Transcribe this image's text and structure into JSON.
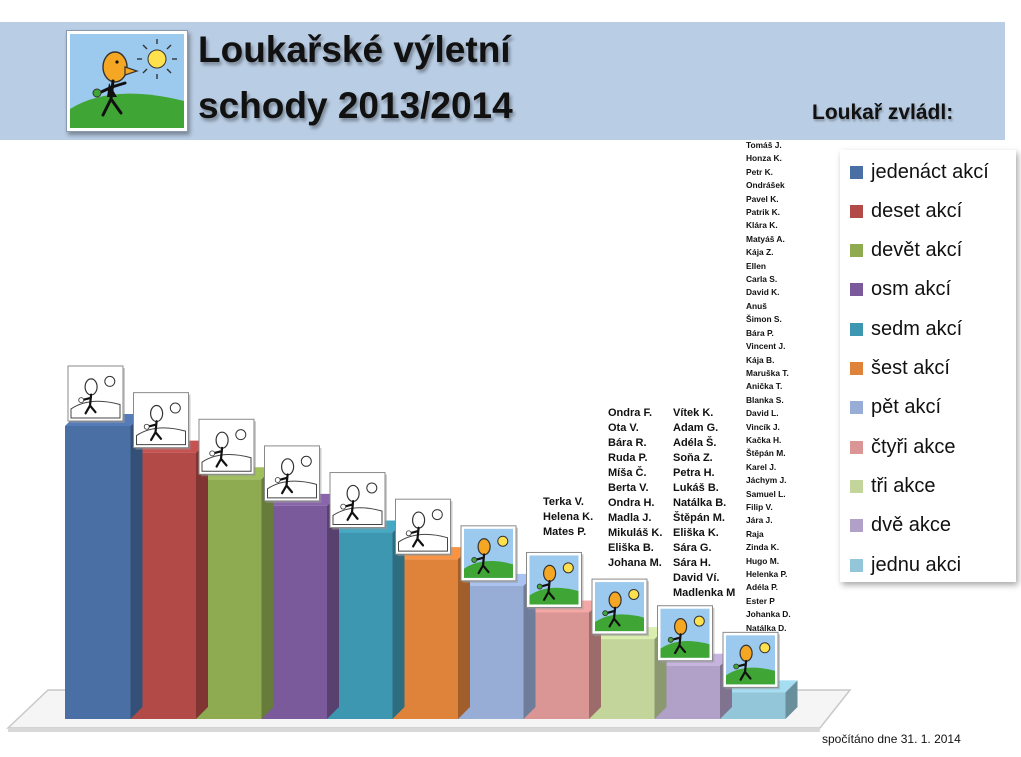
{
  "title_line1": "Loukařské výletní",
  "title_line2": "schody 2013/2014",
  "legend_heading": "Loukař zvládl:",
  "footnote": "spočítáno dne 31. 1. 2014",
  "logo_icon": "hiker-on-hill-icon",
  "chart_data": {
    "type": "bar",
    "categories": [
      "jedenáct akcí",
      "deset akcí",
      "devět akcí",
      "osm akcí",
      "sedm akcí",
      "šest akcí",
      "pět akcí",
      "čtyři akce",
      "tři akce",
      "dvě akce",
      "jednu akci"
    ],
    "values": [
      11,
      10,
      9,
      8,
      7,
      6,
      5,
      4,
      3,
      2,
      1
    ],
    "colors": [
      "#4a6fa5",
      "#b24a47",
      "#8fab52",
      "#7a5a9a",
      "#3e97b0",
      "#e0833a",
      "#97add6",
      "#d99694",
      "#c3d59b",
      "#b1a0c7",
      "#93c6d8"
    ],
    "legend_position": "right",
    "grid": false,
    "names": {
      "čtyři akce": [
        "Terka V.",
        "Helena K.",
        "Mates P."
      ],
      "tři akce": [
        "Ondra F.",
        "Ota V.",
        "Bára R.",
        "Ruda P.",
        "Míša Č.",
        "Berta V.",
        "Ondra H.",
        "Madla J.",
        "Mikuláš K.",
        "Eliška B.",
        "Johana M."
      ],
      "dvě akce": [
        "Vítek K.",
        "Adam G.",
        "Adéla Š.",
        "Soňa Z.",
        "Petra H.",
        "Lukáš B.",
        "Natálka B.",
        "Štěpán M.",
        "Eliška K.",
        "Sára G.",
        "Sára H.",
        "David Ví.",
        "Madlenka M"
      ],
      "jednu akci": [
        "Tomáš J.",
        "Honza K.",
        "Petr K.",
        "Ondrášek",
        "Pavel K.",
        "Patrik K.",
        "Klára K.",
        "Matyáš A.",
        "Kája Z.",
        "Ellen",
        "Carla S.",
        "David K.",
        "Anuš",
        "Šimon S.",
        "Bára P.",
        "Vincent J.",
        "Kája B.",
        "Maruška T.",
        "Anička T.",
        "Blanka S.",
        "David L.",
        "Vincík J.",
        "Kačka H.",
        "Štěpán M.",
        "Karel J.",
        "Jáchym J.",
        "Samuel L.",
        "Filip V.",
        "Jára J.",
        "Raja",
        "Zinda K.",
        "Hugo M.",
        "Helenka P.",
        "Adéla P.",
        "Ester P",
        "Johanka D.",
        "Natálka D."
      ]
    }
  }
}
